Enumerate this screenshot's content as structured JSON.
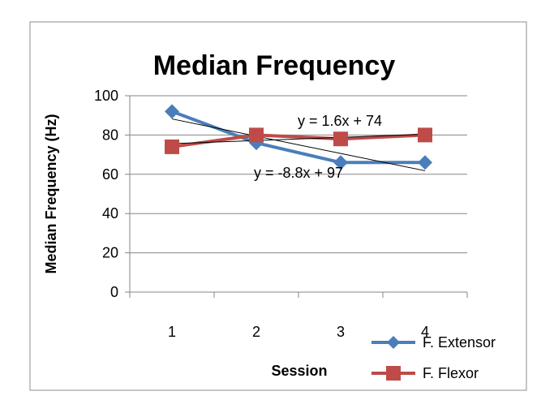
{
  "chart_data": {
    "type": "line",
    "title": "Median Frequency",
    "xlabel": "Session",
    "ylabel": "Median Frequency (Hz)",
    "categories": [
      "1",
      "2",
      "3",
      "4"
    ],
    "ylim": [
      0,
      100
    ],
    "yticks": [
      "0",
      "20",
      "40",
      "60",
      "80",
      "100"
    ],
    "grid": true,
    "legend_position": "bottom-right",
    "series": [
      {
        "name": "F. Extensor",
        "values": [
          92,
          76,
          66,
          66
        ],
        "color": "#4a7ebb",
        "marker": "diamond"
      },
      {
        "name": "F. Flexor",
        "values": [
          74,
          80,
          78,
          80
        ],
        "color": "#be4b48",
        "marker": "square"
      }
    ],
    "trendlines": [
      {
        "label": "y = 1.6x + 74",
        "slope": 1.6,
        "intercept": 74,
        "series": "F. Flexor"
      },
      {
        "label": "y = -8.8x + 97",
        "slope": -8.8,
        "intercept": 97,
        "series": "F. Extensor"
      }
    ]
  }
}
